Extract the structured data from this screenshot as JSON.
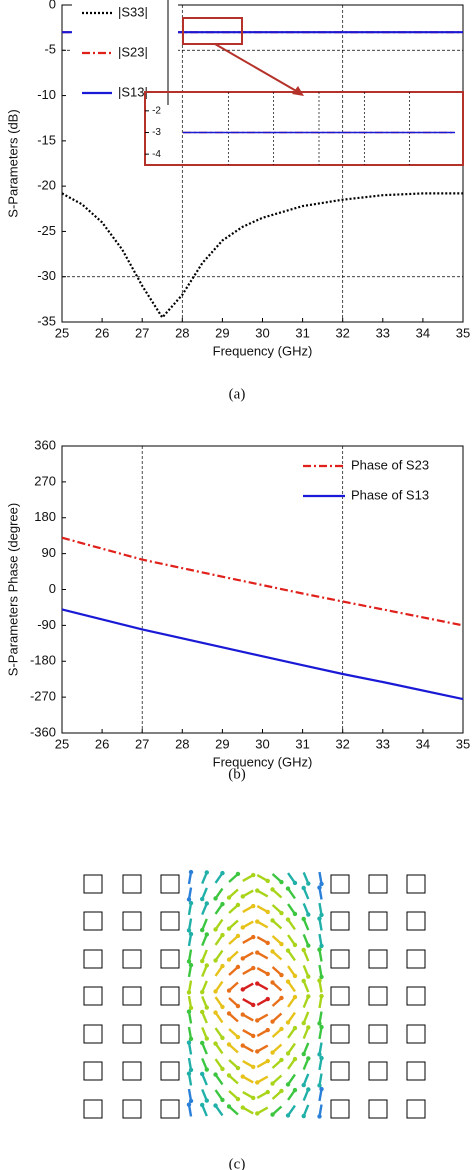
{
  "chart_data": [
    {
      "type": "line",
      "caption": "(a)",
      "xlabel": "Frequency (GHz)",
      "ylabel": "S-Parameters (dB)",
      "xlim": [
        25,
        35
      ],
      "xticks": [
        25,
        26,
        27,
        28,
        29,
        30,
        31,
        32,
        33,
        34,
        35
      ],
      "ylim": [
        -35,
        0
      ],
      "yticks": [
        0,
        -5,
        -10,
        -15,
        -20,
        -25,
        -30,
        -35
      ],
      "xgrid": [
        28,
        32
      ],
      "ygrid": [
        -5,
        -30
      ],
      "legend": "upper left",
      "x": [
        25,
        25.5,
        26,
        26.5,
        27,
        27.5,
        28,
        28.5,
        29,
        29.5,
        30,
        31,
        32,
        33,
        34,
        35
      ],
      "series": [
        {
          "name": "|S33|",
          "color": "#000000",
          "dash": "dotted",
          "values": [
            -20.8,
            -22,
            -24,
            -27,
            -31,
            -34.5,
            -32,
            -28.5,
            -26,
            -24.5,
            -23.5,
            -22.2,
            -21.5,
            -21,
            -20.8,
            -20.8
          ]
        },
        {
          "name": "|S23|",
          "color": "#e0201b",
          "dash": "dashdot",
          "values": [
            -3,
            -3,
            -3,
            -3,
            -3,
            -3,
            -3,
            -3,
            -3,
            -3,
            -3,
            -3,
            -3,
            -3,
            -3,
            -3
          ]
        },
        {
          "name": "|S13|",
          "color": "#1a1ad6",
          "dash": "solid",
          "values": [
            -3,
            -3,
            -3,
            -3,
            -3,
            -3,
            -3,
            -3,
            -3,
            -3,
            -3,
            -3,
            -3,
            -3,
            -3,
            -3
          ]
        }
      ]
    },
    {
      "type": "inset",
      "xlim": [
        28.3,
        29.3
      ],
      "ylim": [
        -4.5,
        -1.5
      ],
      "yticks": [
        -2,
        -3,
        -4
      ],
      "x": [
        28.3,
        29.3
      ],
      "series": [
        {
          "color": "#e0201b",
          "dash": "dashdot",
          "values": [
            -3,
            -3
          ]
        },
        {
          "color": "#1a1ad6",
          "dash": "solid",
          "values": [
            -3,
            -3
          ]
        }
      ]
    },
    {
      "type": "line",
      "caption": "(b)",
      "xlabel": "Frequency (GHz)",
      "ylabel": "S-Parameters Phase (degree)",
      "xlim": [
        25,
        35
      ],
      "xticks": [
        25,
        26,
        27,
        28,
        29,
        30,
        31,
        32,
        33,
        34,
        35
      ],
      "ylim": [
        -360,
        360
      ],
      "yticks": [
        360,
        270,
        180,
        90,
        0,
        -90,
        -180,
        -270,
        -360
      ],
      "xgrid": [
        27,
        32
      ],
      "ygrid": [],
      "legend": "upper right",
      "x": [
        25,
        27,
        29,
        31,
        32,
        33,
        35
      ],
      "series": [
        {
          "name": "Phase of S23",
          "color": "#e0201b",
          "dash": "dashdot",
          "values": [
            130,
            75,
            32,
            -10,
            -30,
            -50,
            -90
          ]
        },
        {
          "name": "Phase of S13",
          "color": "#1a1ad6",
          "dash": "solid",
          "values": [
            -50,
            -100,
            -145,
            -190,
            -212,
            -232,
            -275
          ]
        }
      ]
    },
    {
      "type": "field",
      "caption": "(c)"
    }
  ]
}
